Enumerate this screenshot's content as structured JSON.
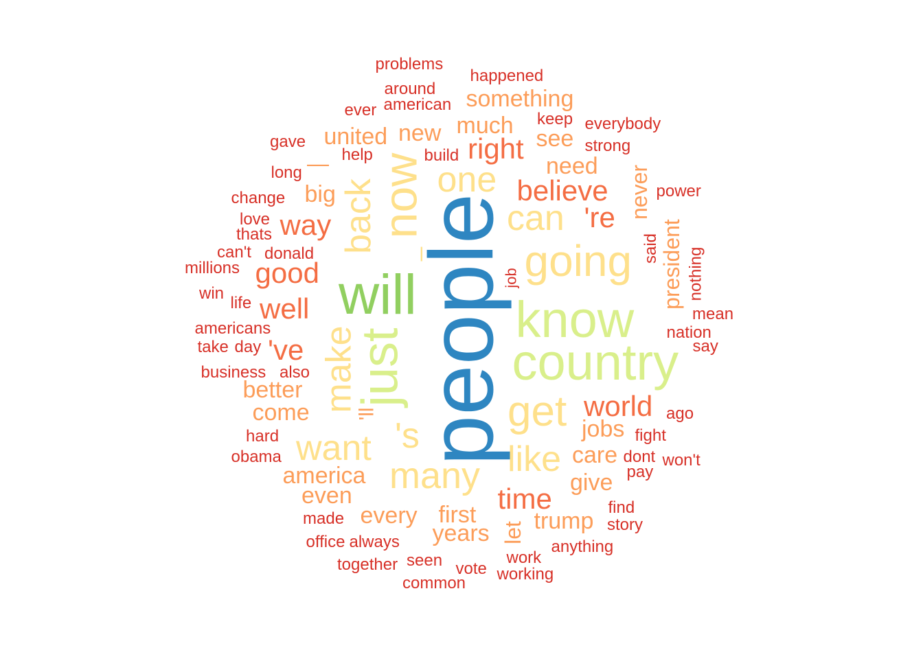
{
  "palette": {
    "blue": "#2e86c1",
    "green": "#91cf60",
    "light_green": "#d9ef8b",
    "yellow": "#fee08b",
    "light_orange": "#fc9d59",
    "orange": "#f46d43",
    "red": "#d73027"
  },
  "words": [
    {
      "text": "people",
      "color": "#2e86c1",
      "rotated": true
    },
    {
      "text": "will",
      "color": "#91cf60"
    },
    {
      "text": "know",
      "color": "#d9ef8b"
    },
    {
      "text": "country",
      "color": "#d9ef8b"
    },
    {
      "text": "just",
      "color": "#d9ef8b",
      "rotated": true
    },
    {
      "text": "now",
      "color": "#fee08b",
      "rotated": true
    },
    {
      "text": "going",
      "color": "#fee08b"
    },
    {
      "text": "get",
      "color": "#fee08b"
    },
    {
      "text": "many",
      "color": "#fee08b"
    },
    {
      "text": "make",
      "color": "#fee08b",
      "rotated": true
    },
    {
      "text": "back",
      "color": "#fee08b",
      "rotated": true
    },
    {
      "text": "one",
      "color": "#fee08b"
    },
    {
      "text": "can",
      "color": "#fee08b"
    },
    {
      "text": "want",
      "color": "#fee08b"
    },
    {
      "text": "like",
      "color": "#fee08b"
    },
    {
      "text": "'s",
      "color": "#fee08b"
    },
    {
      "text": "_",
      "color": "#fee08b",
      "rotated": true
    },
    {
      "text": "right",
      "color": "#f46d43"
    },
    {
      "text": "believe",
      "color": "#f46d43"
    },
    {
      "text": "world",
      "color": "#f46d43"
    },
    {
      "text": "time",
      "color": "#f46d43"
    },
    {
      "text": "good",
      "color": "#f46d43"
    },
    {
      "text": "well",
      "color": "#f46d43"
    },
    {
      "text": "way",
      "color": "#f46d43"
    },
    {
      "text": "'re",
      "color": "#f46d43"
    },
    {
      "text": "'ve",
      "color": "#f46d43"
    },
    {
      "text": "'ll",
      "color": "#fc9d59",
      "rotated": true
    },
    {
      "text": "jobs",
      "color": "#fc9d59"
    },
    {
      "text": "care",
      "color": "#fc9d59"
    },
    {
      "text": "give",
      "color": "#fc9d59"
    },
    {
      "text": "trump",
      "color": "#fc9d59"
    },
    {
      "text": "first",
      "color": "#fc9d59"
    },
    {
      "text": "years",
      "color": "#fc9d59"
    },
    {
      "text": "every",
      "color": "#fc9d59"
    },
    {
      "text": "america",
      "color": "#fc9d59"
    },
    {
      "text": "even",
      "color": "#fc9d59"
    },
    {
      "text": "better",
      "color": "#fc9d59"
    },
    {
      "text": "come",
      "color": "#fc9d59"
    },
    {
      "text": "big",
      "color": "#fc9d59"
    },
    {
      "text": "united",
      "color": "#fc9d59"
    },
    {
      "text": "new",
      "color": "#fc9d59"
    },
    {
      "text": "much",
      "color": "#fc9d59"
    },
    {
      "text": "something",
      "color": "#fc9d59"
    },
    {
      "text": "see",
      "color": "#fc9d59"
    },
    {
      "text": "need",
      "color": "#fc9d59"
    },
    {
      "text": "never",
      "color": "#fc9d59",
      "rotated": true
    },
    {
      "text": "president",
      "color": "#fc9d59",
      "rotated": true
    },
    {
      "text": "let",
      "color": "#fc9d59",
      "rotated": true
    },
    {
      "text": "—",
      "color": "#fc9d59"
    },
    {
      "text": "problems",
      "color": "#d73027"
    },
    {
      "text": "happened",
      "color": "#d73027"
    },
    {
      "text": "around",
      "color": "#d73027"
    },
    {
      "text": "ever",
      "color": "#d73027"
    },
    {
      "text": "american",
      "color": "#d73027"
    },
    {
      "text": "keep",
      "color": "#d73027"
    },
    {
      "text": "everybody",
      "color": "#d73027"
    },
    {
      "text": "gave",
      "color": "#d73027"
    },
    {
      "text": "help",
      "color": "#d73027"
    },
    {
      "text": "build",
      "color": "#d73027"
    },
    {
      "text": "strong",
      "color": "#d73027"
    },
    {
      "text": "long",
      "color": "#d73027"
    },
    {
      "text": "power",
      "color": "#d73027"
    },
    {
      "text": "change",
      "color": "#d73027"
    },
    {
      "text": "love",
      "color": "#d73027"
    },
    {
      "text": "thats",
      "color": "#d73027"
    },
    {
      "text": "can't",
      "color": "#d73027"
    },
    {
      "text": "donald",
      "color": "#d73027"
    },
    {
      "text": "millions",
      "color": "#d73027"
    },
    {
      "text": "said",
      "color": "#d73027",
      "rotated": true
    },
    {
      "text": "nothing",
      "color": "#d73027",
      "rotated": true
    },
    {
      "text": "job",
      "color": "#d73027",
      "rotated": true
    },
    {
      "text": "win",
      "color": "#d73027"
    },
    {
      "text": "life",
      "color": "#d73027"
    },
    {
      "text": "mean",
      "color": "#d73027"
    },
    {
      "text": "americans",
      "color": "#d73027"
    },
    {
      "text": "nation",
      "color": "#d73027"
    },
    {
      "text": "take",
      "color": "#d73027"
    },
    {
      "text": "day",
      "color": "#d73027"
    },
    {
      "text": "say",
      "color": "#d73027"
    },
    {
      "text": "business",
      "color": "#d73027"
    },
    {
      "text": "also",
      "color": "#d73027"
    },
    {
      "text": "ago",
      "color": "#d73027"
    },
    {
      "text": "hard",
      "color": "#d73027"
    },
    {
      "text": "fight",
      "color": "#d73027"
    },
    {
      "text": "obama",
      "color": "#d73027"
    },
    {
      "text": "dont",
      "color": "#d73027"
    },
    {
      "text": "won't",
      "color": "#d73027"
    },
    {
      "text": "pay",
      "color": "#d73027"
    },
    {
      "text": "made",
      "color": "#d73027"
    },
    {
      "text": "find",
      "color": "#d73027"
    },
    {
      "text": "story",
      "color": "#d73027"
    },
    {
      "text": "office",
      "color": "#d73027"
    },
    {
      "text": "always",
      "color": "#d73027"
    },
    {
      "text": "anything",
      "color": "#d73027"
    },
    {
      "text": "work",
      "color": "#d73027"
    },
    {
      "text": "seen",
      "color": "#d73027"
    },
    {
      "text": "together",
      "color": "#d73027"
    },
    {
      "text": "vote",
      "color": "#d73027"
    },
    {
      "text": "working",
      "color": "#d73027"
    },
    {
      "text": "common",
      "color": "#d73027"
    }
  ]
}
